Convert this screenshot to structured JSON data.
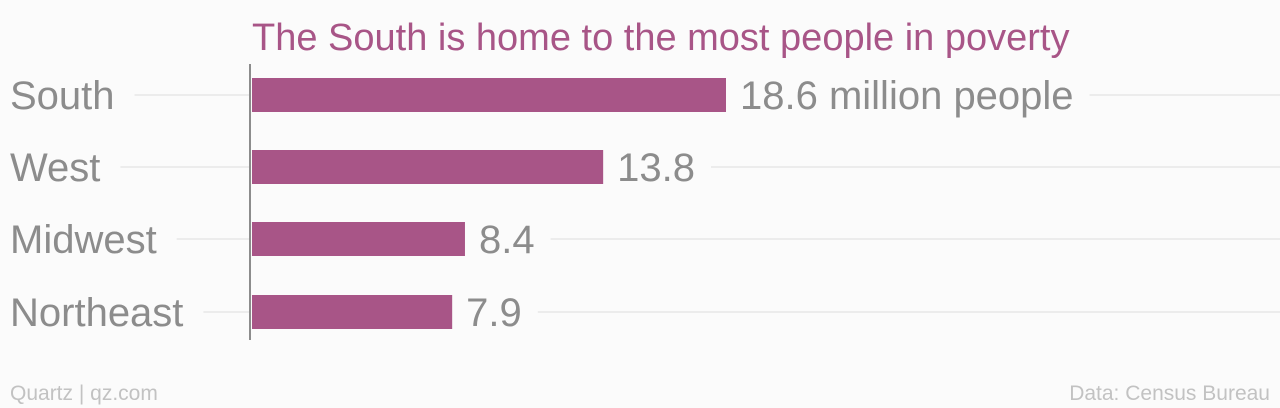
{
  "chart_data": {
    "type": "bar",
    "orientation": "horizontal",
    "title": "The South is home to the most people in poverty",
    "categories": [
      "South",
      "West",
      "Midwest",
      "Northeast"
    ],
    "values": [
      18.6,
      13.8,
      8.4,
      7.9
    ],
    "value_labels": [
      "18.6 million people",
      "13.8",
      "8.4",
      "7.9"
    ],
    "xlim": [
      0,
      40
    ],
    "grid": true,
    "legend": "none"
  },
  "footer": {
    "source_left": "Quartz | qz.com",
    "source_right": "Data: Census Bureau"
  },
  "colors": {
    "bar": "#a85587",
    "title": "#a85587"
  }
}
